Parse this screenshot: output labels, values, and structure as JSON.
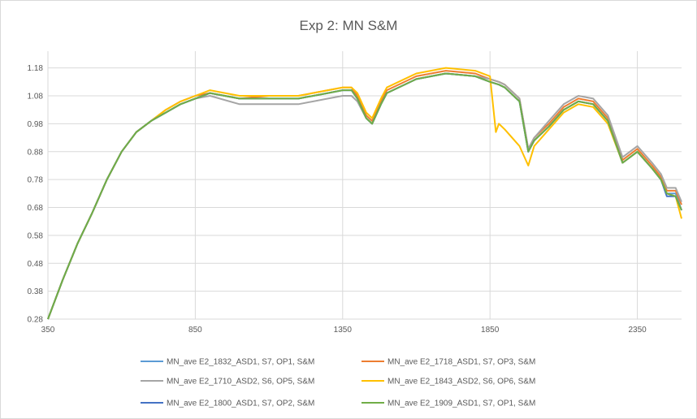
{
  "chart_data": {
    "type": "line",
    "title": "Exp 2: MN S&M",
    "xlabel": "",
    "ylabel": "",
    "xlim": [
      350,
      2500
    ],
    "ylim": [
      0.28,
      1.24
    ],
    "x_ticks": [
      350,
      850,
      1350,
      1850,
      2350
    ],
    "y_ticks": [
      0.28,
      0.38,
      0.48,
      0.58,
      0.68,
      0.78,
      0.88,
      0.98,
      1.08,
      1.18
    ],
    "grid": true,
    "legend_position": "bottom",
    "series": [
      {
        "name": "MN_ave E2_1832_ASD1, S7, OP1, S&M",
        "color": "#5b9bd5",
        "points": [
          [
            350,
            0.28
          ],
          [
            400,
            0.42
          ],
          [
            450,
            0.55
          ],
          [
            500,
            0.66
          ],
          [
            550,
            0.78
          ],
          [
            600,
            0.88
          ],
          [
            650,
            0.95
          ],
          [
            700,
            0.99
          ],
          [
            750,
            1.02
          ],
          [
            800,
            1.05
          ],
          [
            850,
            1.07
          ],
          [
            900,
            1.09
          ],
          [
            1000,
            1.07
          ],
          [
            1100,
            1.07
          ],
          [
            1200,
            1.07
          ],
          [
            1300,
            1.09
          ],
          [
            1350,
            1.1
          ],
          [
            1380,
            1.1
          ],
          [
            1400,
            1.07
          ],
          [
            1430,
            1.0
          ],
          [
            1450,
            0.98
          ],
          [
            1480,
            1.05
          ],
          [
            1500,
            1.09
          ],
          [
            1600,
            1.14
          ],
          [
            1700,
            1.16
          ],
          [
            1800,
            1.15
          ],
          [
            1850,
            1.13
          ],
          [
            1880,
            1.12
          ],
          [
            1900,
            1.11
          ],
          [
            1950,
            1.06
          ],
          [
            1980,
            0.88
          ],
          [
            2000,
            0.92
          ],
          [
            2050,
            0.97
          ],
          [
            2100,
            1.03
          ],
          [
            2150,
            1.06
          ],
          [
            2200,
            1.05
          ],
          [
            2250,
            0.99
          ],
          [
            2300,
            0.84
          ],
          [
            2350,
            0.88
          ],
          [
            2400,
            0.82
          ],
          [
            2430,
            0.78
          ],
          [
            2450,
            0.73
          ],
          [
            2480,
            0.73
          ],
          [
            2500,
            0.67
          ]
        ]
      },
      {
        "name": "MN_ave E2_1718_ASD1, S7, OP3, S&M",
        "color": "#ed7d31",
        "points": [
          [
            350,
            0.28
          ],
          [
            400,
            0.42
          ],
          [
            450,
            0.55
          ],
          [
            500,
            0.66
          ],
          [
            550,
            0.78
          ],
          [
            600,
            0.88
          ],
          [
            650,
            0.95
          ],
          [
            700,
            0.99
          ],
          [
            750,
            1.03
          ],
          [
            800,
            1.06
          ],
          [
            850,
            1.08
          ],
          [
            900,
            1.09
          ],
          [
            1000,
            1.07
          ],
          [
            1100,
            1.08
          ],
          [
            1200,
            1.08
          ],
          [
            1300,
            1.1
          ],
          [
            1350,
            1.11
          ],
          [
            1380,
            1.11
          ],
          [
            1400,
            1.08
          ],
          [
            1430,
            1.01
          ],
          [
            1450,
            0.99
          ],
          [
            1480,
            1.06
          ],
          [
            1500,
            1.1
          ],
          [
            1600,
            1.15
          ],
          [
            1700,
            1.17
          ],
          [
            1800,
            1.16
          ],
          [
            1850,
            1.14
          ],
          [
            1880,
            1.13
          ],
          [
            1900,
            1.12
          ],
          [
            1950,
            1.07
          ],
          [
            1980,
            0.89
          ],
          [
            2000,
            0.93
          ],
          [
            2050,
            0.98
          ],
          [
            2100,
            1.04
          ],
          [
            2150,
            1.07
          ],
          [
            2200,
            1.06
          ],
          [
            2250,
            1.0
          ],
          [
            2300,
            0.85
          ],
          [
            2350,
            0.89
          ],
          [
            2400,
            0.83
          ],
          [
            2430,
            0.79
          ],
          [
            2450,
            0.74
          ],
          [
            2480,
            0.74
          ],
          [
            2500,
            0.69
          ]
        ]
      },
      {
        "name": "MN_ave E2_1710_ASD2, S6, OP5, S&M",
        "color": "#a5a5a5",
        "points": [
          [
            350,
            0.28
          ],
          [
            400,
            0.42
          ],
          [
            450,
            0.55
          ],
          [
            500,
            0.66
          ],
          [
            550,
            0.78
          ],
          [
            600,
            0.88
          ],
          [
            650,
            0.95
          ],
          [
            700,
            0.99
          ],
          [
            750,
            1.02
          ],
          [
            800,
            1.05
          ],
          [
            850,
            1.07
          ],
          [
            900,
            1.08
          ],
          [
            1000,
            1.05
          ],
          [
            1100,
            1.05
          ],
          [
            1200,
            1.05
          ],
          [
            1300,
            1.07
          ],
          [
            1350,
            1.08
          ],
          [
            1380,
            1.08
          ],
          [
            1400,
            1.06
          ],
          [
            1430,
            1.0
          ],
          [
            1450,
            0.98
          ],
          [
            1480,
            1.05
          ],
          [
            1500,
            1.09
          ],
          [
            1600,
            1.14
          ],
          [
            1700,
            1.16
          ],
          [
            1800,
            1.15
          ],
          [
            1850,
            1.14
          ],
          [
            1880,
            1.13
          ],
          [
            1900,
            1.12
          ],
          [
            1950,
            1.07
          ],
          [
            1980,
            0.89
          ],
          [
            2000,
            0.93
          ],
          [
            2050,
            0.99
          ],
          [
            2100,
            1.05
          ],
          [
            2150,
            1.08
          ],
          [
            2200,
            1.07
          ],
          [
            2250,
            1.01
          ],
          [
            2300,
            0.86
          ],
          [
            2350,
            0.9
          ],
          [
            2400,
            0.84
          ],
          [
            2430,
            0.8
          ],
          [
            2450,
            0.75
          ],
          [
            2480,
            0.75
          ],
          [
            2500,
            0.7
          ]
        ]
      },
      {
        "name": "MN_ave E2_1843_ASD2, S6, OP6, S&M",
        "color": "#ffc000",
        "points": [
          [
            350,
            0.28
          ],
          [
            400,
            0.42
          ],
          [
            450,
            0.55
          ],
          [
            500,
            0.66
          ],
          [
            550,
            0.78
          ],
          [
            600,
            0.88
          ],
          [
            650,
            0.95
          ],
          [
            700,
            0.99
          ],
          [
            750,
            1.03
          ],
          [
            800,
            1.06
          ],
          [
            850,
            1.08
          ],
          [
            900,
            1.1
          ],
          [
            1000,
            1.08
          ],
          [
            1100,
            1.08
          ],
          [
            1200,
            1.08
          ],
          [
            1300,
            1.1
          ],
          [
            1350,
            1.11
          ],
          [
            1380,
            1.11
          ],
          [
            1400,
            1.09
          ],
          [
            1430,
            1.02
          ],
          [
            1450,
            1.0
          ],
          [
            1480,
            1.07
          ],
          [
            1500,
            1.11
          ],
          [
            1600,
            1.16
          ],
          [
            1700,
            1.18
          ],
          [
            1800,
            1.17
          ],
          [
            1850,
            1.15
          ],
          [
            1870,
            0.95
          ],
          [
            1880,
            0.98
          ],
          [
            1900,
            0.96
          ],
          [
            1950,
            0.9
          ],
          [
            1980,
            0.83
          ],
          [
            2000,
            0.9
          ],
          [
            2050,
            0.96
          ],
          [
            2100,
            1.02
          ],
          [
            2150,
            1.05
          ],
          [
            2200,
            1.04
          ],
          [
            2250,
            0.98
          ],
          [
            2300,
            0.84
          ],
          [
            2350,
            0.88
          ],
          [
            2400,
            0.82
          ],
          [
            2430,
            0.78
          ],
          [
            2450,
            0.73
          ],
          [
            2480,
            0.72
          ],
          [
            2500,
            0.64
          ]
        ]
      },
      {
        "name": "MN_ave E2_1800_ASD1, S7, OP2, S&M",
        "color": "#4472c4",
        "points": [
          [
            350,
            0.28
          ],
          [
            400,
            0.42
          ],
          [
            450,
            0.55
          ],
          [
            500,
            0.66
          ],
          [
            550,
            0.78
          ],
          [
            600,
            0.88
          ],
          [
            650,
            0.95
          ],
          [
            700,
            0.99
          ],
          [
            750,
            1.02
          ],
          [
            800,
            1.05
          ],
          [
            850,
            1.07
          ],
          [
            900,
            1.09
          ],
          [
            1000,
            1.07
          ],
          [
            1100,
            1.07
          ],
          [
            1200,
            1.07
          ],
          [
            1300,
            1.09
          ],
          [
            1350,
            1.1
          ],
          [
            1380,
            1.1
          ],
          [
            1400,
            1.07
          ],
          [
            1430,
            1.0
          ],
          [
            1450,
            0.98
          ],
          [
            1480,
            1.05
          ],
          [
            1500,
            1.09
          ],
          [
            1600,
            1.14
          ],
          [
            1700,
            1.16
          ],
          [
            1800,
            1.15
          ],
          [
            1850,
            1.13
          ],
          [
            1880,
            1.12
          ],
          [
            1900,
            1.11
          ],
          [
            1950,
            1.06
          ],
          [
            1980,
            0.88
          ],
          [
            2000,
            0.92
          ],
          [
            2050,
            0.97
          ],
          [
            2100,
            1.03
          ],
          [
            2150,
            1.06
          ],
          [
            2200,
            1.05
          ],
          [
            2250,
            0.99
          ],
          [
            2300,
            0.84
          ],
          [
            2350,
            0.88
          ],
          [
            2400,
            0.82
          ],
          [
            2430,
            0.78
          ],
          [
            2450,
            0.72
          ],
          [
            2480,
            0.72
          ],
          [
            2500,
            0.67
          ]
        ]
      },
      {
        "name": "MN_ave E2_1909_ASD1, S7, OP1, S&M",
        "color": "#70ad47",
        "points": [
          [
            350,
            0.28
          ],
          [
            400,
            0.42
          ],
          [
            450,
            0.55
          ],
          [
            500,
            0.66
          ],
          [
            550,
            0.78
          ],
          [
            600,
            0.88
          ],
          [
            650,
            0.95
          ],
          [
            700,
            0.99
          ],
          [
            750,
            1.02
          ],
          [
            800,
            1.05
          ],
          [
            850,
            1.07
          ],
          [
            900,
            1.09
          ],
          [
            1000,
            1.07
          ],
          [
            1100,
            1.07
          ],
          [
            1200,
            1.07
          ],
          [
            1300,
            1.09
          ],
          [
            1350,
            1.1
          ],
          [
            1380,
            1.1
          ],
          [
            1400,
            1.07
          ],
          [
            1430,
            1.0
          ],
          [
            1450,
            0.98
          ],
          [
            1480,
            1.05
          ],
          [
            1500,
            1.09
          ],
          [
            1600,
            1.14
          ],
          [
            1700,
            1.16
          ],
          [
            1800,
            1.15
          ],
          [
            1850,
            1.13
          ],
          [
            1880,
            1.12
          ],
          [
            1900,
            1.11
          ],
          [
            1950,
            1.06
          ],
          [
            1980,
            0.88
          ],
          [
            2000,
            0.92
          ],
          [
            2050,
            0.97
          ],
          [
            2100,
            1.03
          ],
          [
            2150,
            1.06
          ],
          [
            2200,
            1.05
          ],
          [
            2250,
            0.99
          ],
          [
            2300,
            0.84
          ],
          [
            2350,
            0.88
          ],
          [
            2400,
            0.82
          ],
          [
            2430,
            0.78
          ],
          [
            2450,
            0.73
          ],
          [
            2480,
            0.72
          ],
          [
            2500,
            0.67
          ]
        ]
      }
    ]
  }
}
